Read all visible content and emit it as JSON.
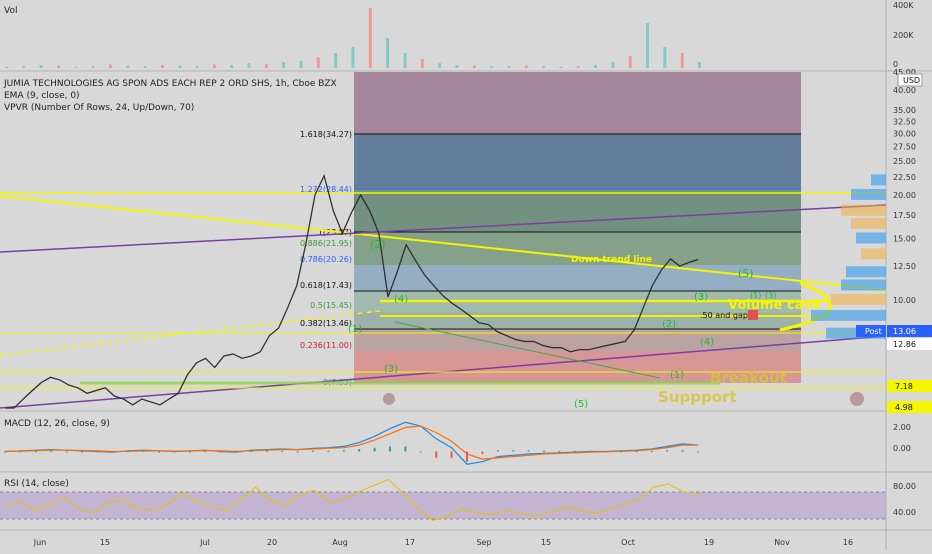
{
  "header": {
    "symbol_line": "JUMIA TECHNOLOGIES AG SPON ADS EACH REP 2 ORD SHS, 1h, Cboe BZX",
    "ema_label": "EMA (9, close, 0)",
    "vpvr_label": "VPVR (Number Of Rows, 24, Up/Down, 70)",
    "currency": "USD"
  },
  "panes": {
    "vol": {
      "label": "Vol",
      "ticks": [
        "400K",
        "200K",
        "0"
      ]
    },
    "macd": {
      "label": "MACD (12, 26, close, 9)",
      "ticks": [
        "2.00",
        "0.00"
      ]
    },
    "rsi": {
      "label": "RSI (14, close)",
      "ticks": [
        "80.00",
        "40.00"
      ]
    }
  },
  "fib_labels": [
    "1.618(34.27)",
    "1.272(28.44)",
    "1(23.87)",
    "0.886(21.95)",
    "0.786(20.26)",
    "0.618(17.43)",
    "0.5(15.45)",
    "0.382(13.46)",
    "0.236(11.00)",
    "0(7.03)"
  ],
  "annotations": {
    "down_trend": "Down trend line",
    "volume_cave": "Volume cave",
    "gap_note": ".50 and gap",
    "breakout": "Breakout",
    "support": "Suppport",
    "waves": [
      "(1)",
      "(2)",
      "(3)",
      "(4)",
      "(5)",
      "(3)",
      "(4)",
      "(1)",
      "(2)",
      "(5)",
      "(1)",
      "(3)"
    ]
  },
  "price_badges": {
    "post": "Post",
    "post_value": "13.06",
    "last": "12.86",
    "level_a": "7.18",
    "level_b": "4.98"
  },
  "colors": {
    "up": "#26a69a",
    "down": "#ef5350",
    "fib_box": "#5f86a5",
    "yellow": "#f5f500",
    "macd": "#1e88e5",
    "signal": "#ff6d00",
    "rsi": "#e6c200"
  },
  "chart_data": {
    "type": "line",
    "title": "JUMIA TECHNOLOGIES AG SPON ADS EACH REP 2 ORD SHS, 1h, Cboe BZX",
    "x_ticks": [
      "Jun",
      "15",
      "Jul",
      "20",
      "Aug",
      "17",
      "Sep",
      "15",
      "Oct",
      "19",
      "Nov",
      "16"
    ],
    "y_ticks": [
      "45.00",
      "40.00",
      "35.00",
      "32.50",
      "30.00",
      "27.50",
      "25.00",
      "22.50",
      "20.00",
      "17.50",
      "15.00",
      "12.50",
      "10.00",
      "7.50",
      "5.00"
    ],
    "y_scale": "log",
    "ylim": [
      4.9,
      45
    ],
    "series": [
      {
        "name": "JMIA",
        "values": [
          4.6,
          4.7,
          5.2,
          5.5,
          5.8,
          6.0,
          5.9,
          5.7,
          5.6,
          5.4,
          5.5,
          5.6,
          5.3,
          5.2,
          5.0,
          5.2,
          5.1,
          5.0,
          5.2,
          5.4,
          6.1,
          6.6,
          6.8,
          6.4,
          6.9,
          7.0,
          6.8,
          6.9,
          7.1,
          7.9,
          8.3,
          9.5,
          11.0,
          14.5,
          20.0,
          22.7,
          18.0,
          15.5,
          17.8,
          20.0,
          18.0,
          15.5,
          10.2,
          12.0,
          14.4,
          13.0,
          11.8,
          11.0,
          10.3,
          9.8,
          9.4,
          9.0,
          8.6,
          8.5,
          8.1,
          7.9,
          7.7,
          7.6,
          7.6,
          7.4,
          7.3,
          7.3,
          7.1,
          7.2,
          7.2,
          7.3,
          7.4,
          7.5,
          7.6,
          8.2,
          9.5,
          11.0,
          12.2,
          13.1,
          12.5,
          12.8,
          13.06
        ]
      }
    ],
    "macd_range": [
      -1.3,
      2.8
    ],
    "macd": [
      0.0,
      0.05,
      0.1,
      0.15,
      0.1,
      0.05,
      0.0,
      -0.05,
      0.05,
      0.1,
      0.05,
      0.0,
      0.05,
      0.1,
      0.0,
      -0.05,
      0.1,
      0.15,
      0.2,
      0.15,
      0.25,
      0.3,
      0.4,
      0.7,
      1.2,
      1.8,
      2.3,
      2.0,
      1.0,
      0.3,
      -1.0,
      -0.8,
      -0.4,
      -0.3,
      -0.2,
      -0.15,
      -0.1,
      -0.05,
      0.0,
      0.0,
      0.05,
      0.1,
      0.2,
      0.4,
      0.6,
      0.5
    ],
    "macd_signal": [
      0.0,
      0.03,
      0.07,
      0.1,
      0.1,
      0.08,
      0.05,
      0.0,
      0.02,
      0.05,
      0.05,
      0.03,
      0.04,
      0.07,
      0.05,
      0.02,
      0.06,
      0.1,
      0.15,
      0.15,
      0.2,
      0.25,
      0.3,
      0.5,
      0.9,
      1.4,
      1.9,
      2.0,
      1.5,
      0.8,
      -0.2,
      -0.6,
      -0.5,
      -0.4,
      -0.3,
      -0.2,
      -0.15,
      -0.1,
      -0.05,
      -0.02,
      0.02,
      0.06,
      0.15,
      0.3,
      0.5,
      0.5
    ],
    "rsi_range": [
      25,
      95
    ],
    "rsi": [
      52,
      60,
      48,
      55,
      65,
      50,
      45,
      58,
      62,
      50,
      48,
      55,
      70,
      60,
      52,
      48,
      62,
      78,
      60,
      55,
      68,
      74,
      58,
      62,
      72,
      80,
      88,
      70,
      50,
      35,
      40,
      50,
      45,
      42,
      48,
      44,
      40,
      46,
      52,
      48,
      44,
      50,
      55,
      62,
      78,
      82,
      72,
      70
    ],
    "volume_peaks": [
      0.02,
      0.03,
      0.05,
      0.04,
      0.02,
      0.03,
      0.06,
      0.04,
      0.03,
      0.05,
      0.04,
      0.03,
      0.06,
      0.05,
      0.08,
      0.06,
      0.1,
      0.12,
      0.18,
      0.25,
      0.35,
      1.0,
      0.5,
      0.25,
      0.15,
      0.08,
      0.05,
      0.04,
      0.03,
      0.03,
      0.04,
      0.03,
      0.02,
      0.03,
      0.05,
      0.1,
      0.2,
      0.75,
      0.35,
      0.25,
      0.1
    ]
  }
}
